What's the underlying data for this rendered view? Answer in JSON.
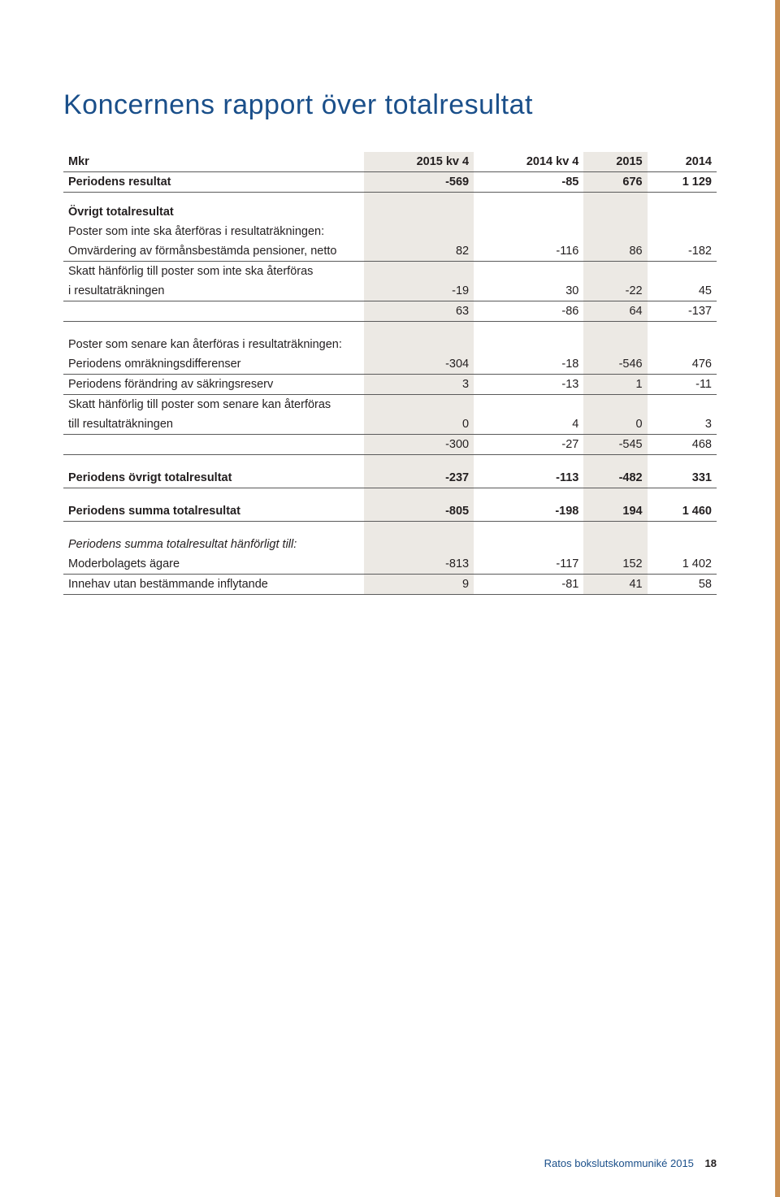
{
  "title": "Koncernens rapport över totalresultat",
  "columns": {
    "label": "Mkr",
    "c1": "2015 kv 4",
    "c2": "2014 kv 4",
    "c3": "2015",
    "c4": "2014"
  },
  "rows": {
    "periodens_resultat": {
      "label": "Periodens resultat",
      "c1": "-569",
      "c2": "-85",
      "c3": "676",
      "c4": "1 129"
    },
    "ovrigt_hdr": {
      "label": "Övrigt totalresultat"
    },
    "poster_inte_label": {
      "label": "Poster som inte ska återföras i resultaträkningen:"
    },
    "omvardering": {
      "label": "Omvärdering av förmånsbestämda pensioner, netto",
      "c1": "82",
      "c2": "-116",
      "c3": "86",
      "c4": "-182"
    },
    "skatt_inte_label1": {
      "label": "Skatt hänförlig till poster som inte ska återföras"
    },
    "skatt_inte_label2": {
      "label": "i resultaträkningen",
      "c1": "-19",
      "c2": "30",
      "c3": "-22",
      "c4": "45"
    },
    "subtotal_inte": {
      "c1": "63",
      "c2": "-86",
      "c3": "64",
      "c4": "-137"
    },
    "poster_senare_label": {
      "label": "Poster som senare kan återföras i resultaträkningen:"
    },
    "omrakning": {
      "label": "Periodens omräkningsdifferenser",
      "c1": "-304",
      "c2": "-18",
      "c3": "-546",
      "c4": "476"
    },
    "sakringsreserv": {
      "label": "Periodens förändring av säkringsreserv",
      "c1": "3",
      "c2": "-13",
      "c3": "1",
      "c4": "-11"
    },
    "skatt_senare_label1": {
      "label": "Skatt hänförlig till poster som senare kan återföras"
    },
    "skatt_senare_label2": {
      "label": "till resultaträkningen",
      "c1": "0",
      "c2": "4",
      "c3": "0",
      "c4": "3"
    },
    "subtotal_senare": {
      "c1": "-300",
      "c2": "-27",
      "c3": "-545",
      "c4": "468"
    },
    "ovrigt_total": {
      "label": "Periodens övrigt totalresultat",
      "c1": "-237",
      "c2": "-113",
      "c3": "-482",
      "c4": "331"
    },
    "summa_total": {
      "label": "Periodens summa totalresultat",
      "c1": "-805",
      "c2": "-198",
      "c3": "194",
      "c4": "1 460"
    },
    "hanforligt_label": {
      "label": "Periodens summa totalresultat hänförligt till:"
    },
    "moderbolagets": {
      "label": "Moderbolagets ägare",
      "c1": "-813",
      "c2": "-117",
      "c3": "152",
      "c4": "1 402"
    },
    "innehav": {
      "label": "Innehav utan bestämmande inflytande",
      "c1": "9",
      "c2": "-81",
      "c3": "41",
      "c4": "58"
    }
  },
  "footer": {
    "text": "Ratos bokslutskommuniké 2015",
    "page": "18"
  },
  "colors": {
    "title": "#1a4f8a",
    "highlight": "#ece9e4",
    "accent": "#c98e50"
  }
}
